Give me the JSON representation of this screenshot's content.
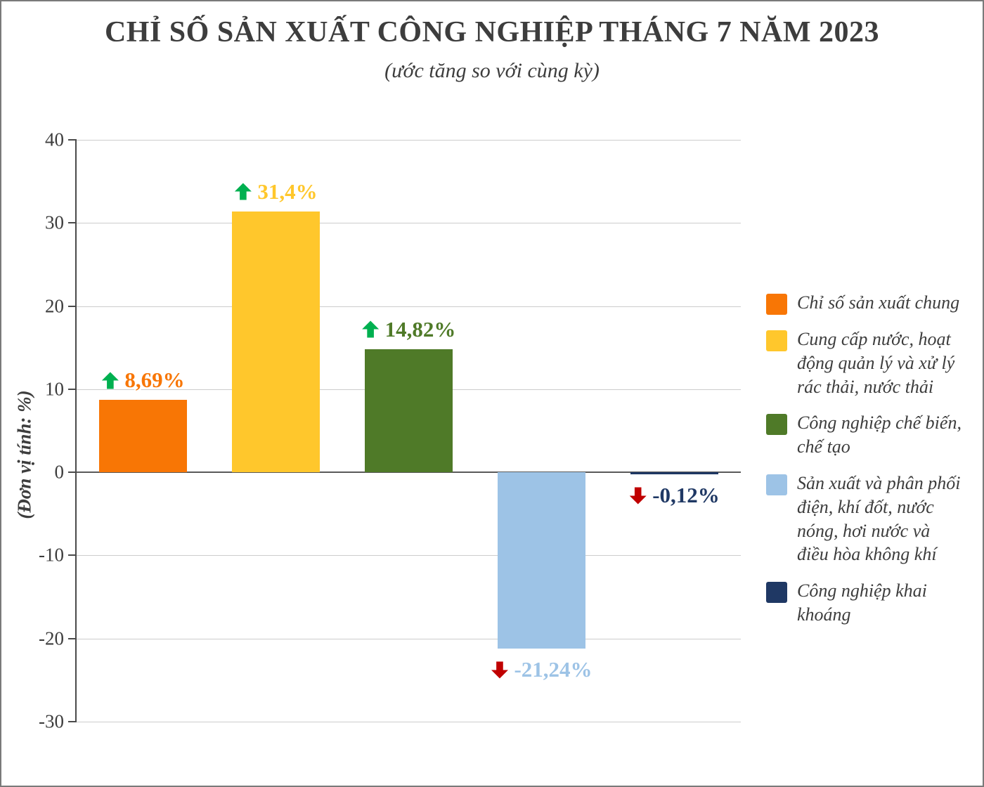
{
  "chart_data": {
    "type": "bar",
    "title": "CHỈ SỐ SẢN XUẤT CÔNG NGHIỆP THÁNG 7 NĂM 2023",
    "subtitle": "(ước tăng so với cùng kỳ)",
    "ylabel": "(Đơn vị tính: %)",
    "xlabel": "",
    "ylim": [
      -30,
      40
    ],
    "yticks": [
      40,
      30,
      20,
      10,
      0,
      -10,
      -20,
      -30
    ],
    "grid": true,
    "legend_position": "right",
    "categories": [
      "Chỉ số sản xuất chung",
      "Cung cấp nước, hoạt động quản lý và xử lý rác thải, nước thải",
      "Công nghiệp chế biến, chế tạo",
      "Sản xuất và phân phối điện, khí đốt, nước nóng, hơi nước và điều hòa không khí",
      "Công nghiệp khai khoáng"
    ],
    "values": [
      8.69,
      31.4,
      14.82,
      -21.24,
      -0.12
    ],
    "value_labels": [
      "8,69%",
      "31,4%",
      "14,82%",
      "-21,24%",
      "-0,12%"
    ],
    "bar_colors": [
      "#F87605",
      "#FFC72C",
      "#4F7A28",
      "#9DC3E6",
      "#1F3864"
    ],
    "arrow_up_color": "#00B050",
    "arrow_down_color": "#C00000",
    "legend": [
      {
        "label": "Chỉ số sản xuất chung",
        "color": "#F87605"
      },
      {
        "label": "Cung cấp nước, hoạt động quản lý và xử lý rác thải, nước thải",
        "color": "#FFC72C"
      },
      {
        "label": "Công nghiệp chế biến, chế tạo",
        "color": "#4F7A28"
      },
      {
        "label": "Sản xuất và phân phối điện, khí đốt, nước nóng, hơi nước và điều hòa không khí",
        "color": "#9DC3E6"
      },
      {
        "label": "Công nghiệp khai khoáng",
        "color": "#1F3864"
      }
    ]
  }
}
